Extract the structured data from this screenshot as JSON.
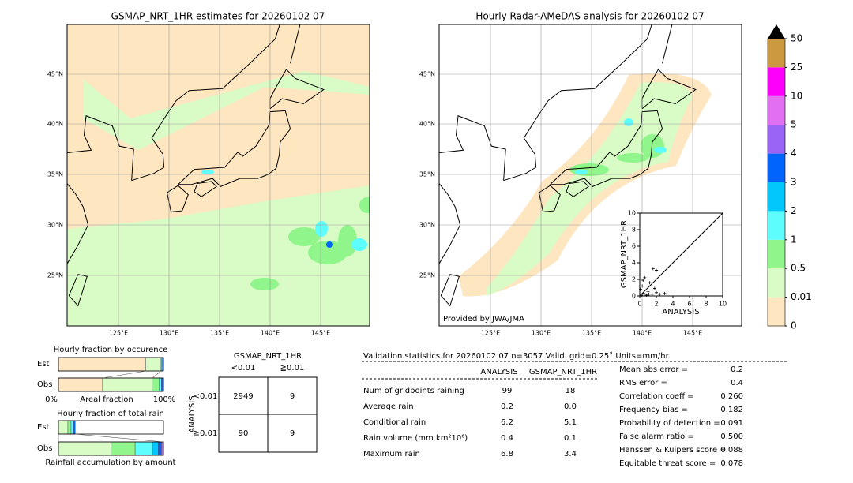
{
  "left_map": {
    "title": "GSMAP_NRT_1HR estimates for 20260102 07",
    "lat_labels": [
      "45°N",
      "40°N",
      "35°N",
      "30°N",
      "25°N"
    ],
    "lon_labels": [
      "125°E",
      "130°E",
      "135°E",
      "140°E",
      "145°E"
    ]
  },
  "right_map": {
    "title": "Hourly Radar-AMeDAS analysis for 20260102 07",
    "lat_labels": [
      "45°N",
      "40°N",
      "35°N",
      "30°N",
      "25°N"
    ],
    "lon_labels": [
      "125°E",
      "130°E",
      "135°E",
      "140°E",
      "145°E"
    ],
    "credit": "Provided by JWA/JMA"
  },
  "colorbar": {
    "ticks": [
      0,
      0.01,
      0.5,
      1,
      2,
      3,
      4,
      5,
      10,
      25,
      50
    ],
    "colors": [
      "#fde6c0",
      "#d9fcc6",
      "#90f58a",
      "#5dfdfd",
      "#00c8fd",
      "#0064fd",
      "#9a64f6",
      "#e26ef2",
      "#fc00fc",
      "#cc9940"
    ],
    "extend_color": "#000000"
  },
  "scatter": {
    "type": "scatter",
    "xlabel": "ANALYSIS",
    "ylabel": "GSMAP_NRT_1HR",
    "xlim": [
      0,
      10
    ],
    "ylim": [
      0,
      10
    ],
    "xticks": [
      0,
      2,
      4,
      6,
      8,
      10
    ],
    "yticks": [
      0,
      2,
      4,
      6,
      8,
      10
    ],
    "x": [
      0.2,
      0.5,
      0.8,
      1,
      1.2,
      1.5,
      2,
      0.3,
      0.6,
      1.6,
      2,
      1.8,
      2.4,
      3,
      0.1,
      0.4,
      1.1
    ],
    "y": [
      0.1,
      0.3,
      0.1,
      0.5,
      1.6,
      0.2,
      0.4,
      1.2,
      2.2,
      3.3,
      3.1,
      0.9,
      0.2,
      0.3,
      0.8,
      1.9,
      0.2
    ]
  },
  "occurrence": {
    "title": "Hourly fraction by occurence",
    "xlabel": "Areal fraction",
    "xmin_label": "0%",
    "xmax_label": "100%",
    "series": [
      {
        "name": "Est",
        "values": [
          83,
          14,
          1,
          1,
          1
        ],
        "colors": [
          "#fde6c0",
          "#d9fcc6",
          "#90f58a",
          "#5dfdfd",
          "#0064fd"
        ]
      },
      {
        "name": "Obs",
        "values": [
          42,
          47,
          7,
          2,
          2
        ],
        "colors": [
          "#fde6c0",
          "#d9fcc6",
          "#90f58a",
          "#5dfdfd",
          "#0064fd"
        ]
      }
    ]
  },
  "total_rain": {
    "title": "Hourly fraction of total rain",
    "xlabel": "Rainfall accumulation by amount",
    "series": [
      {
        "name": "Est",
        "values": [
          9,
          3,
          2,
          2
        ],
        "colors": [
          "#d9fcc6",
          "#90f58a",
          "#5dfdfd",
          "#0064fd"
        ]
      },
      {
        "name": "Obs",
        "values": [
          50,
          23,
          17,
          5,
          3,
          2
        ],
        "colors": [
          "#d9fcc6",
          "#90f58a",
          "#5dfdfd",
          "#00c8fd",
          "#0064fd",
          "#9a64f6"
        ]
      }
    ]
  },
  "contingency": {
    "title": "GSMAP_NRT_1HR",
    "col_labels": [
      "<0.01",
      "≧0.01"
    ],
    "row_title": "ANALYSIS",
    "row_labels": [
      "<0.01",
      "≧0.01"
    ],
    "cells": [
      [
        "2949",
        "9"
      ],
      [
        "90",
        "9"
      ]
    ]
  },
  "validation": {
    "title": "Validation statistics for 20260102 07  n=3057 Valid. grid=0.25˚ Units=mm/hr.",
    "columns": [
      "ANALYSIS",
      "GSMAP_NRT_1HR"
    ],
    "rows": [
      [
        "Num of gridpoints raining",
        "99",
        "18"
      ],
      [
        "Average rain",
        "0.2",
        "0.0"
      ],
      [
        "Conditional rain",
        "6.2",
        "5.1"
      ],
      [
        "Rain volume (mm km²10⁶)",
        "0.4",
        "0.1"
      ],
      [
        "Maximum rain",
        "6.8",
        "3.4"
      ]
    ],
    "scores": [
      [
        "Mean abs error =",
        "0.2"
      ],
      [
        "RMS error =",
        "0.4"
      ],
      [
        "Correlation coeff =",
        "0.260"
      ],
      [
        "Frequency bias =",
        "0.182"
      ],
      [
        "Probability of detection =",
        "0.091"
      ],
      [
        "False alarm ratio =",
        "0.500"
      ],
      [
        "Hanssen & Kuipers score =",
        "0.088"
      ],
      [
        "Equitable threat score =",
        "0.078"
      ]
    ]
  }
}
